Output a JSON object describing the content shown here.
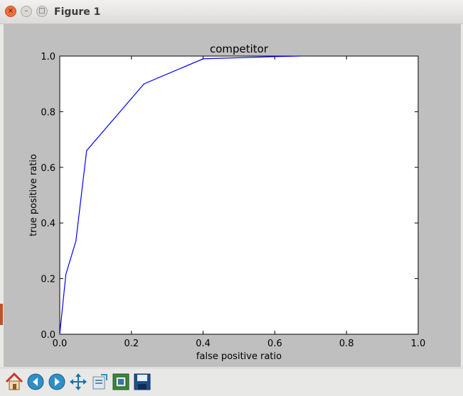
{
  "window": {
    "title": "Figure 1"
  },
  "toolbar": {
    "buttons": [
      "home-icon",
      "back-icon",
      "forward-icon",
      "pan-icon",
      "zoom-icon",
      "configure-subplots-icon",
      "save-icon"
    ]
  },
  "colors": {
    "line": "#0000ff",
    "figure_bg": "#bfbfbf",
    "axes_bg": "#ffffff"
  },
  "chart_data": {
    "type": "line",
    "title": "competitor",
    "xlabel": "false positive ratio",
    "ylabel": "true positive ratio",
    "xlim": [
      0.0,
      1.0
    ],
    "ylim": [
      0.0,
      1.0
    ],
    "xticks": [
      "0.0",
      "0.2",
      "0.4",
      "0.6",
      "0.8",
      "1.0"
    ],
    "yticks": [
      "0.0",
      "0.2",
      "0.4",
      "0.6",
      "0.8",
      "1.0"
    ],
    "grid": false,
    "series": [
      {
        "x": [
          0.0,
          0.017,
          0.045,
          0.075,
          0.235,
          0.4,
          0.6,
          0.67
        ],
        "y": [
          0.0,
          0.215,
          0.335,
          0.66,
          0.9,
          0.99,
          0.998,
          1.0
        ]
      }
    ]
  }
}
